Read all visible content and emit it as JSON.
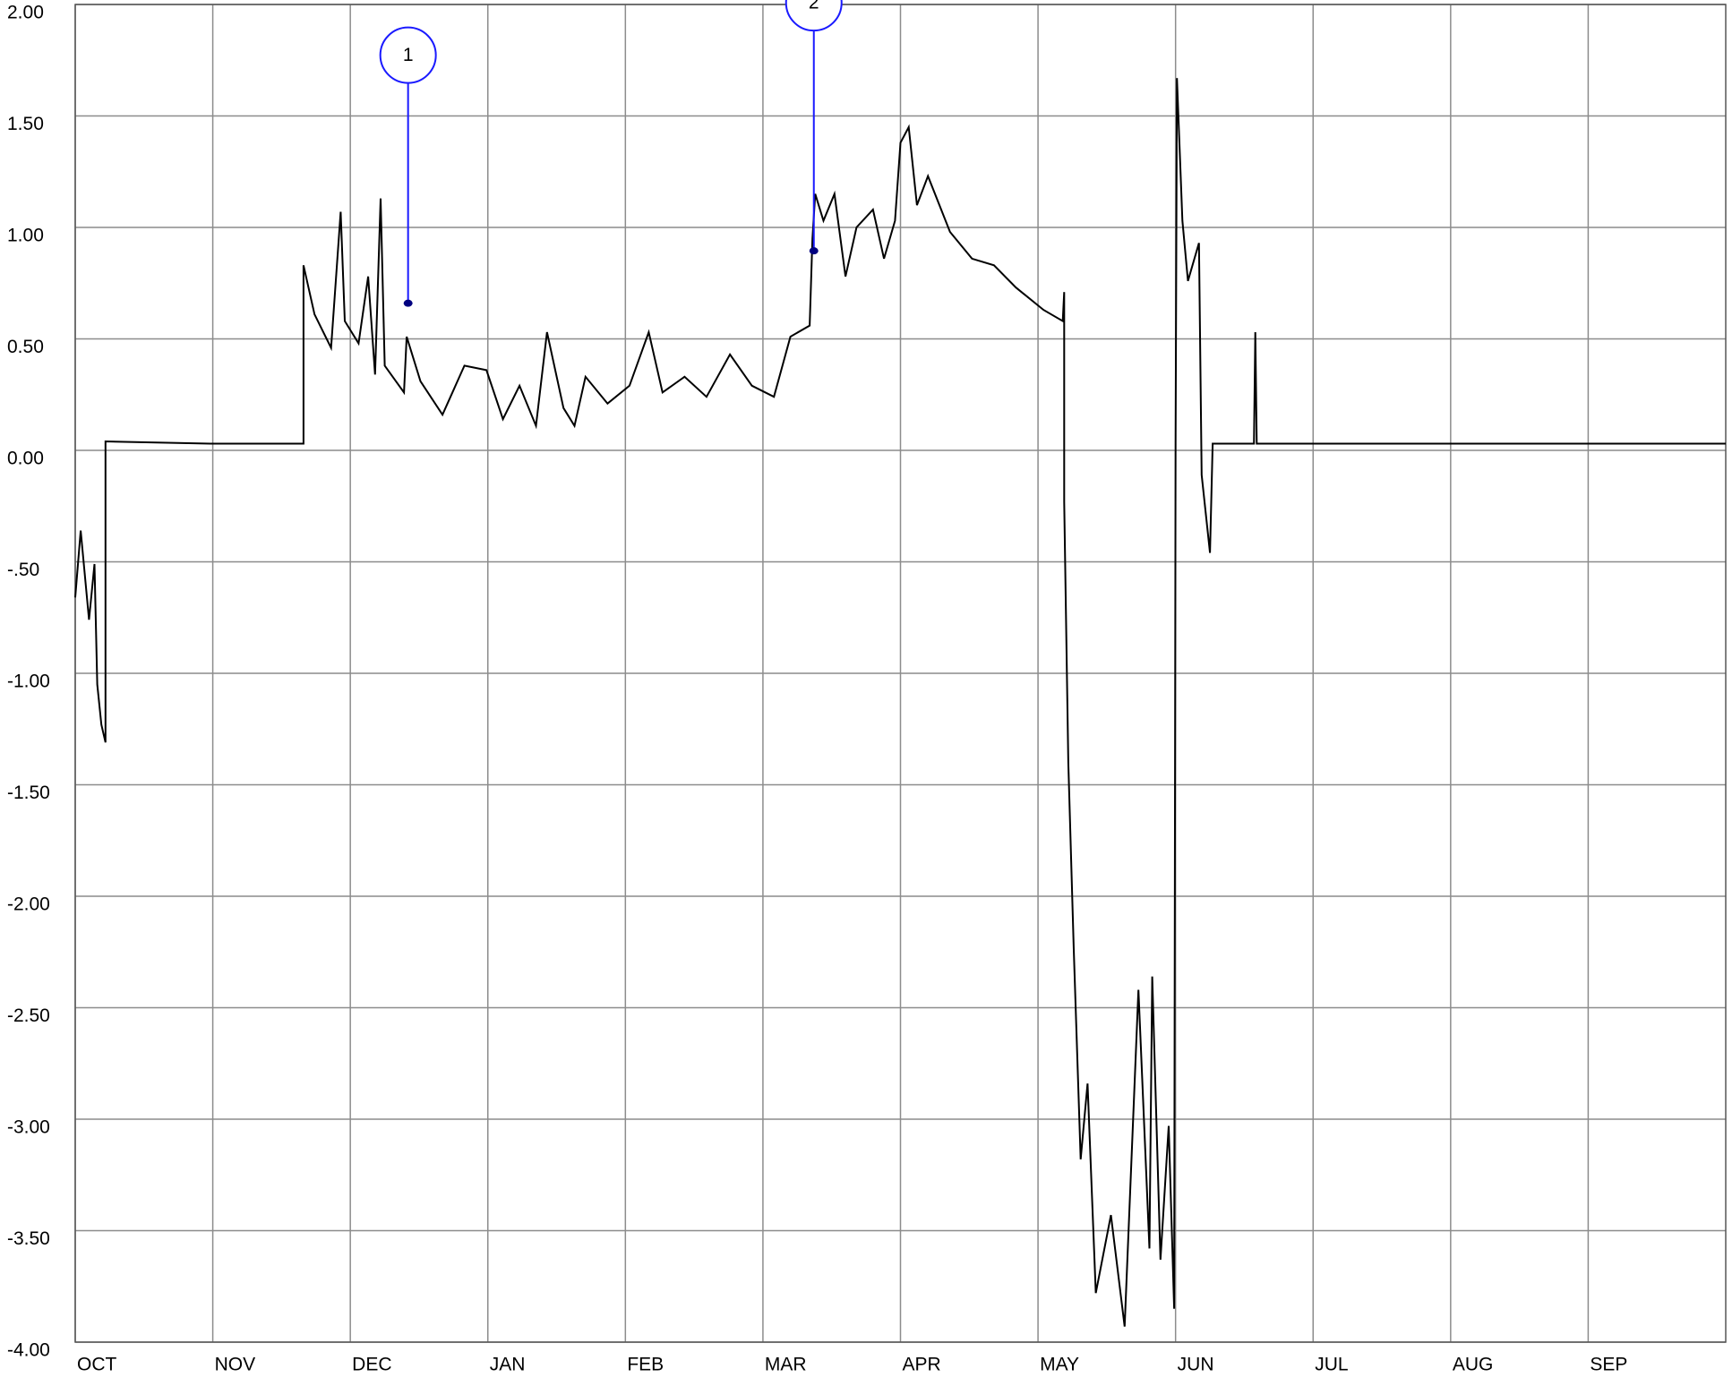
{
  "chart_data": {
    "type": "line",
    "x": [
      0,
      0.04,
      0.1,
      0.14,
      0.16,
      0.19,
      0.22,
      0.22,
      0.98,
      1.66,
      1.66,
      1.74,
      1.86,
      1.93,
      1.96,
      2.06,
      2.13,
      2.18,
      2.22,
      2.25,
      2.39,
      2.41,
      2.51,
      2.67,
      2.83,
      2.99,
      3.11,
      3.23,
      3.35,
      3.43,
      3.55,
      3.63,
      3.71,
      3.87,
      4.03,
      4.17,
      4.27,
      4.43,
      4.59,
      4.76,
      4.92,
      5.08,
      5.2,
      5.34,
      5.36,
      5.38,
      5.44,
      5.52,
      5.6,
      5.68,
      5.8,
      5.88,
      5.96,
      6.0,
      6.06,
      6.12,
      6.2,
      6.36,
      6.52,
      6.68,
      6.84,
      7.04,
      7.18,
      7.19,
      7.19,
      7.22,
      7.26,
      7.31,
      7.36,
      7.42,
      7.53,
      7.63,
      7.73,
      7.81,
      7.83,
      7.89,
      7.95,
      7.99,
      8.0,
      8.01,
      8.05,
      8.09,
      8.17,
      8.19,
      8.25,
      8.27,
      8.57,
      8.58,
      8.59,
      12.0
    ],
    "series": [
      {
        "color": "#000000",
        "values": [
          -0.66,
          -0.36,
          -0.76,
          -0.51,
          -1.05,
          -1.23,
          -1.31,
          0.04,
          0.03,
          0.03,
          0.83,
          0.61,
          0.46,
          1.07,
          0.58,
          0.48,
          0.78,
          0.34,
          1.13,
          0.38,
          0.26,
          0.51,
          0.31,
          0.16,
          0.38,
          0.36,
          0.14,
          0.29,
          0.11,
          0.53,
          0.19,
          0.11,
          0.33,
          0.21,
          0.29,
          0.53,
          0.26,
          0.33,
          0.24,
          0.43,
          0.29,
          0.24,
          0.51,
          0.56,
          0.95,
          1.15,
          1.03,
          1.15,
          0.78,
          1.0,
          1.08,
          0.86,
          1.03,
          1.38,
          1.45,
          1.1,
          1.23,
          0.98,
          0.86,
          0.83,
          0.73,
          0.63,
          0.58,
          0.71,
          -0.23,
          -1.4,
          -2.24,
          -3.18,
          -2.84,
          -3.78,
          -3.43,
          -3.93,
          -2.42,
          -3.58,
          -2.36,
          -3.63,
          -3.03,
          -3.85,
          0.04,
          1.67,
          1.03,
          0.76,
          0.93,
          -0.11,
          -0.46,
          0.03,
          0.03,
          0.53,
          0.03,
          0.03
        ]
      }
    ],
    "xlim": [
      0,
      12
    ],
    "xticks": [
      {
        "value": 0,
        "label": "OCT"
      },
      {
        "value": 1,
        "label": "NOV"
      },
      {
        "value": 2,
        "label": "DEC"
      },
      {
        "value": 3,
        "label": "JAN"
      },
      {
        "value": 4,
        "label": "FEB"
      },
      {
        "value": 5,
        "label": "MAR"
      },
      {
        "value": 6,
        "label": "APR"
      },
      {
        "value": 7,
        "label": "MAY"
      },
      {
        "value": 8,
        "label": "JUN"
      },
      {
        "value": 9,
        "label": "JUL"
      },
      {
        "value": 10,
        "label": "AUG"
      },
      {
        "value": 11,
        "label": "SEP"
      }
    ],
    "ylim": [
      -4,
      2
    ],
    "yticks": [
      {
        "value": 2,
        "label": "2.00"
      },
      {
        "value": 1.5,
        "label": "1.50"
      },
      {
        "value": 1,
        "label": "1.00"
      },
      {
        "value": 0.5,
        "label": "0.50"
      },
      {
        "value": 0,
        "label": "0.00"
      },
      {
        "value": -0.5,
        "label": "-.50"
      },
      {
        "value": -1,
        "label": "-1.00"
      },
      {
        "value": -1.5,
        "label": "-1.50"
      },
      {
        "value": -2,
        "label": "-2.00"
      },
      {
        "value": -2.5,
        "label": "-2.50"
      },
      {
        "value": -3,
        "label": "-3.00"
      },
      {
        "value": -3.5,
        "label": "-3.50"
      },
      {
        "value": -4,
        "label": "-4.00"
      }
    ],
    "grid": true,
    "annotations": [
      {
        "label": "1",
        "x": 2.42,
        "y": 0.66,
        "color": "#1a1aff"
      },
      {
        "label": "2",
        "x": 5.37,
        "y": 0.895,
        "color": "#1a1aff"
      }
    ]
  }
}
